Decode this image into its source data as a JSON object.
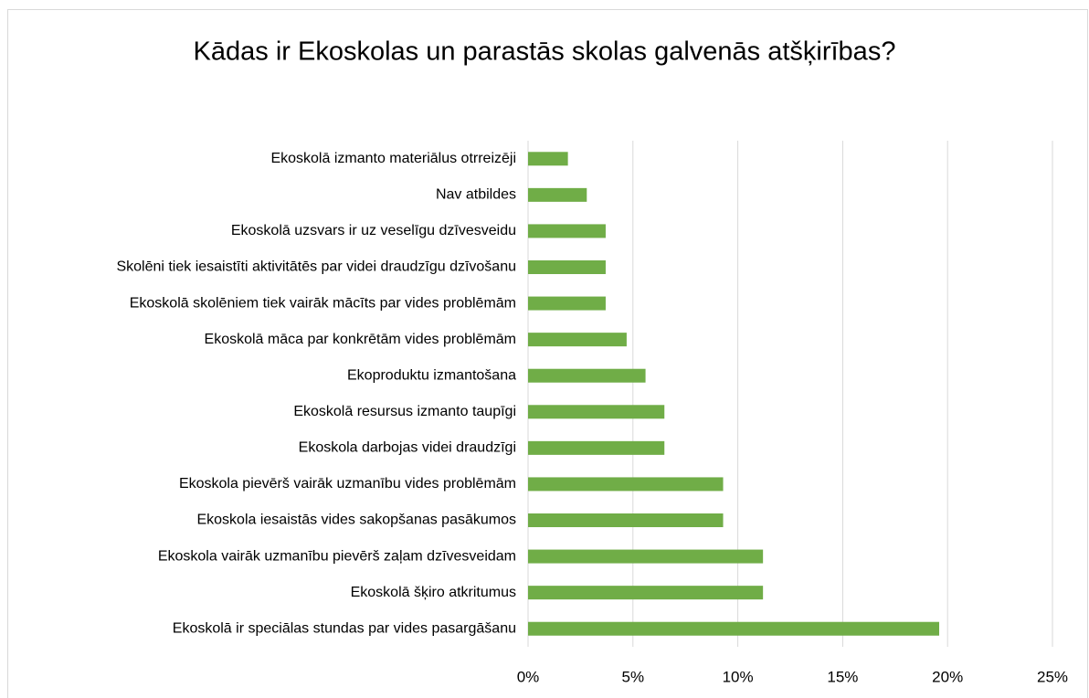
{
  "chart_data": {
    "type": "barh",
    "title": "Kādas ir Ekoskolas un parastās skolas galvenās atšķirības?",
    "categories": [
      "Ekoskolā izmanto materiālus otrreizēji",
      "Nav atbildes",
      "Ekoskolā uzsvars ir uz veselīgu dzīvesveidu",
      "Skolēni tiek iesaistīti aktivitātēs par videi draudzīgu dzīvošanu",
      "Ekoskolā skolēniem tiek vairāk mācīts par vides problēmām",
      "Ekoskolā māca par konkrētām vides problēmām",
      "Ekoproduktu izmantošana",
      "Ekoskolā resursus izmanto taupīgi",
      "Ekoskola darbojas videi draudzīgi",
      "Ekoskola pievērš vairāk uzmanību vides problēmām",
      "Ekoskola iesaistās vides sakopšanas pasākumos",
      "Ekoskola vairāk uzmanību pievērš zaļam dzīvesveidam",
      "Ekoskolā šķiro atkritumus",
      "Ekoskolā ir speciālas stundas par vides pasargāšanu"
    ],
    "values": [
      1.9,
      2.8,
      3.7,
      3.7,
      3.7,
      4.7,
      5.6,
      6.5,
      6.5,
      9.3,
      9.3,
      11.2,
      11.2,
      19.6
    ],
    "color": "#70ad47",
    "xlim": [
      0,
      25
    ],
    "xticks": [
      {
        "value": 0,
        "label": "0%"
      },
      {
        "value": 5,
        "label": "5%"
      },
      {
        "value": 10,
        "label": "10%"
      },
      {
        "value": 15,
        "label": "15%"
      },
      {
        "value": 20,
        "label": "20%"
      },
      {
        "value": 25,
        "label": "25%"
      }
    ],
    "grid": true
  }
}
